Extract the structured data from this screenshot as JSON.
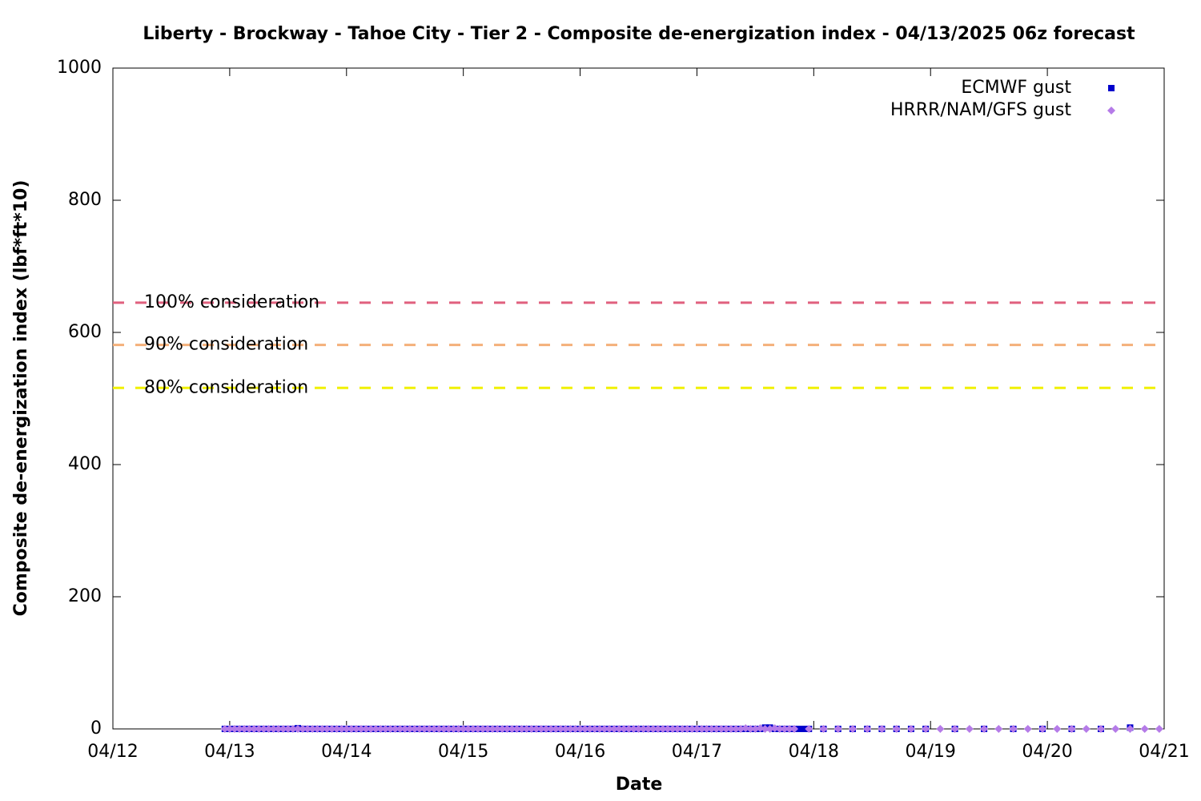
{
  "chart_data": {
    "type": "scatter",
    "title": "Liberty - Brockway - Tahoe City - Tier 2 - Composite de-energization index - 04/13/2025 06z forecast",
    "xlabel": "Date",
    "ylabel": "Composite de-energization index (lbf*ft*10)",
    "xlim": [
      0,
      216
    ],
    "xticks": [
      {
        "value": 0,
        "label": "04/12"
      },
      {
        "value": 24,
        "label": "04/13"
      },
      {
        "value": 48,
        "label": "04/14"
      },
      {
        "value": 72,
        "label": "04/15"
      },
      {
        "value": 96,
        "label": "04/16"
      },
      {
        "value": 120,
        "label": "04/17"
      },
      {
        "value": 144,
        "label": "04/18"
      },
      {
        "value": 168,
        "label": "04/19"
      },
      {
        "value": 192,
        "label": "04/20"
      },
      {
        "value": 216,
        "label": "04/21"
      }
    ],
    "ylim": [
      0,
      1000
    ],
    "yticks": [
      0,
      200,
      400,
      600,
      800,
      1000
    ],
    "legend": "upper right",
    "reference_lines": [
      {
        "label": "100% consideration",
        "value": 645,
        "color": "#e0607e"
      },
      {
        "label": "90% consideration",
        "value": 581,
        "color": "#f4b07a"
      },
      {
        "label": "80% consideration",
        "value": 516,
        "color": "#f0f000"
      }
    ],
    "series": [
      {
        "name": "ECMWF gust",
        "color": "#0000cc",
        "marker": "square",
        "x": [
          23,
          24,
          25,
          26,
          27,
          28,
          29,
          30,
          31,
          32,
          33,
          34,
          35,
          36,
          37,
          38,
          39,
          40,
          41,
          42,
          43,
          44,
          45,
          46,
          47,
          48,
          49,
          50,
          51,
          52,
          53,
          54,
          55,
          56,
          57,
          58,
          59,
          60,
          61,
          62,
          63,
          64,
          65,
          66,
          67,
          68,
          69,
          70,
          71,
          72,
          73,
          74,
          75,
          76,
          77,
          78,
          79,
          80,
          81,
          82,
          83,
          84,
          85,
          86,
          87,
          88,
          89,
          90,
          91,
          92,
          93,
          94,
          95,
          96,
          97,
          98,
          99,
          100,
          101,
          102,
          103,
          104,
          105,
          106,
          107,
          108,
          109,
          110,
          111,
          112,
          113,
          114,
          115,
          116,
          117,
          118,
          119,
          120,
          121,
          122,
          123,
          124,
          125,
          126,
          127,
          128,
          129,
          130,
          131,
          132,
          133,
          134,
          135,
          136,
          137,
          138,
          139,
          140,
          141,
          142,
          143,
          146,
          149,
          152,
          155,
          158,
          161,
          164,
          167,
          173,
          179,
          185,
          191,
          197,
          203,
          209
        ],
        "values": [
          0,
          0,
          0,
          0,
          0,
          0,
          0,
          0,
          0,
          0,
          0,
          0,
          0,
          0,
          0,
          1,
          0,
          0,
          0,
          0,
          0,
          0,
          0,
          0,
          0,
          0,
          0,
          0,
          0,
          0,
          0,
          0,
          0,
          0,
          0,
          0,
          0,
          0,
          0,
          0,
          0,
          0,
          0,
          0,
          0,
          0,
          0,
          0,
          0,
          0,
          0,
          0,
          0,
          0,
          0,
          0,
          0,
          0,
          0,
          0,
          0,
          0,
          0,
          0,
          0,
          0,
          0,
          0,
          0,
          0,
          0,
          0,
          0,
          0,
          0,
          0,
          0,
          0,
          0,
          0,
          0,
          0,
          0,
          0,
          0,
          0,
          0,
          0,
          0,
          0,
          0,
          0,
          0,
          0,
          0,
          0,
          0,
          0,
          0,
          0,
          0,
          0,
          0,
          0,
          0,
          0,
          0,
          0,
          0,
          0,
          0,
          2,
          2,
          0,
          0,
          0,
          0,
          0,
          0,
          0,
          0,
          0,
          0,
          0,
          0,
          0,
          0,
          0,
          0,
          0,
          0,
          0,
          0,
          0,
          0,
          2
        ]
      },
      {
        "name": "HRRR/NAM/GFS gust",
        "color": "#b57be8",
        "marker": "diamond",
        "x": [
          23,
          24,
          25,
          26,
          27,
          28,
          29,
          30,
          31,
          32,
          33,
          34,
          35,
          36,
          37,
          38,
          39,
          40,
          41,
          42,
          43,
          44,
          45,
          46,
          47,
          48,
          49,
          50,
          51,
          52,
          53,
          54,
          55,
          56,
          57,
          58,
          59,
          60,
          61,
          62,
          63,
          64,
          65,
          66,
          67,
          68,
          69,
          70,
          71,
          72,
          73,
          74,
          75,
          76,
          77,
          78,
          79,
          80,
          81,
          82,
          83,
          84,
          85,
          86,
          87,
          88,
          89,
          90,
          91,
          92,
          93,
          94,
          95,
          96,
          97,
          98,
          99,
          100,
          101,
          102,
          103,
          104,
          105,
          106,
          107,
          108,
          109,
          110,
          111,
          112,
          113,
          114,
          115,
          116,
          117,
          118,
          119,
          120,
          121,
          122,
          123,
          124,
          125,
          126,
          127,
          128,
          129,
          130,
          131,
          132,
          133,
          134,
          135,
          136,
          137,
          138,
          139,
          140,
          143,
          146,
          149,
          152,
          155,
          158,
          161,
          164,
          167,
          170,
          173,
          176,
          179,
          182,
          185,
          188,
          191,
          194,
          197,
          200,
          203,
          206,
          209,
          212,
          215
        ],
        "values": [
          0,
          0,
          0,
          0,
          0,
          0,
          0,
          0,
          0,
          0,
          0,
          0,
          0,
          0,
          0,
          0,
          0,
          0,
          0,
          0,
          0,
          0,
          0,
          0,
          0,
          0,
          0,
          0,
          0,
          0,
          0,
          0,
          0,
          0,
          0,
          0,
          0,
          0,
          0,
          0,
          0,
          0,
          0,
          0,
          0,
          0,
          0,
          0,
          0,
          0,
          0,
          0,
          0,
          0,
          0,
          0,
          0,
          0,
          0,
          0,
          0,
          0,
          0,
          0,
          0,
          0,
          0,
          0,
          0,
          0,
          0,
          0,
          0,
          0,
          0,
          0,
          0,
          0,
          0,
          0,
          0,
          0,
          0,
          0,
          0,
          0,
          0,
          0,
          0,
          0,
          0,
          0,
          0,
          0,
          0,
          0,
          0,
          0,
          0,
          0,
          0,
          0,
          0,
          0,
          0,
          0,
          0,
          1,
          0,
          0,
          1,
          0,
          0,
          1,
          0,
          0,
          0,
          0,
          0,
          0,
          0,
          0,
          0,
          0,
          0,
          0,
          0,
          0,
          0,
          0,
          0,
          0,
          0,
          0,
          0,
          0,
          0,
          0,
          0,
          0,
          0,
          0,
          0
        ]
      }
    ]
  }
}
